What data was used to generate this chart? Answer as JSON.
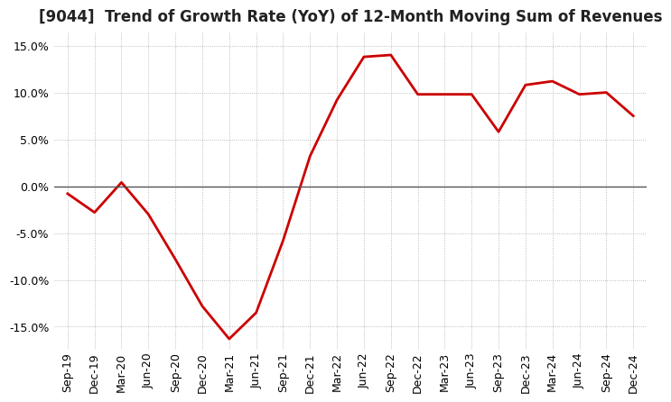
{
  "title": "[9044]  Trend of Growth Rate (YoY) of 12-Month Moving Sum of Revenues",
  "x_labels": [
    "Sep-19",
    "Dec-19",
    "Mar-20",
    "Jun-20",
    "Sep-20",
    "Dec-20",
    "Mar-21",
    "Jun-21",
    "Sep-21",
    "Dec-21",
    "Mar-22",
    "Jun-22",
    "Sep-22",
    "Dec-22",
    "Mar-23",
    "Jun-23",
    "Sep-23",
    "Dec-23",
    "Mar-24",
    "Jun-24",
    "Sep-24",
    "Dec-24"
  ],
  "y_values": [
    -0.8,
    -2.8,
    0.4,
    -3.0,
    -7.8,
    -12.8,
    -16.3,
    -13.5,
    -5.8,
    3.2,
    9.2,
    13.8,
    14.0,
    9.8,
    9.8,
    9.8,
    5.8,
    10.8,
    11.2,
    9.8,
    10.0,
    7.5
  ],
  "ylim": [
    -17.5,
    16.5
  ],
  "yticks": [
    -15.0,
    -10.0,
    -5.0,
    0.0,
    5.0,
    10.0,
    15.0
  ],
  "line_color": "#cc0000",
  "background_color": "#ffffff",
  "grid_color": "#aaaaaa",
  "zero_line_color": "#555555",
  "title_fontsize": 12,
  "tick_fontsize": 9
}
